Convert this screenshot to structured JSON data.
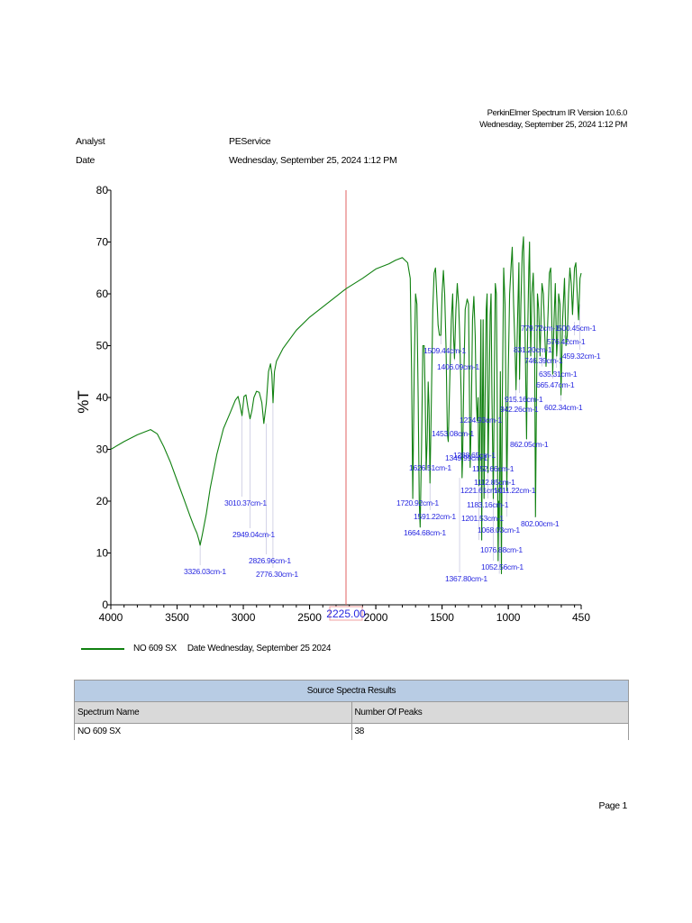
{
  "header": {
    "software": "PerkinElmer Spectrum IR Version 10.6.0",
    "software_date": "Wednesday, September 25, 2024 1:12 PM",
    "analyst_label": "Analyst",
    "analyst_value": "PEService",
    "date_label": "Date",
    "date_value": "Wednesday, September 25, 2024 1:12 PM"
  },
  "chart_data": {
    "type": "line",
    "xlabel": "cm-1",
    "ylabel": "%T",
    "xlim": [
      4000,
      450
    ],
    "ylim": [
      0,
      80
    ],
    "x_reversed": true,
    "grid": false,
    "xticks": [
      4000,
      3500,
      3000,
      2500,
      2000,
      1500,
      1000,
      450
    ],
    "yticks": [
      0,
      10,
      20,
      30,
      40,
      50,
      60,
      70,
      80
    ],
    "cursor": {
      "x": 2225.0,
      "label": "2225.00"
    },
    "colors": {
      "line": "#108010",
      "peaks": "#2828e0",
      "cursor": "#e06060",
      "axis": "#000000"
    },
    "series": [
      {
        "name": "NO 609 SX",
        "x": [
          4000,
          3900,
          3800,
          3700,
          3650,
          3600,
          3550,
          3500,
          3450,
          3400,
          3370,
          3350,
          3335,
          3326,
          3310,
          3280,
          3250,
          3200,
          3150,
          3100,
          3060,
          3040,
          3025,
          3010,
          2995,
          2980,
          2965,
          2949,
          2935,
          2920,
          2900,
          2880,
          2860,
          2845,
          2826,
          2810,
          2795,
          2785,
          2776,
          2765,
          2750,
          2700,
          2600,
          2500,
          2400,
          2300,
          2225,
          2100,
          2000,
          1900,
          1850,
          1800,
          1780,
          1760,
          1740,
          1730,
          1721,
          1710,
          1700,
          1690,
          1680,
          1672,
          1665,
          1655,
          1645,
          1635,
          1627,
          1620,
          1612,
          1605,
          1598,
          1591,
          1580,
          1570,
          1560,
          1550,
          1540,
          1530,
          1520,
          1509,
          1500,
          1490,
          1480,
          1470,
          1460,
          1453,
          1440,
          1430,
          1420,
          1414,
          1406,
          1395,
          1385,
          1375,
          1368,
          1355,
          1349,
          1345,
          1335,
          1325,
          1310,
          1300,
          1288,
          1280,
          1270,
          1260,
          1250,
          1242,
          1235,
          1228,
          1221,
          1213,
          1207,
          1201,
          1195,
          1190,
          1183,
          1175,
          1167,
          1160,
          1153,
          1145,
          1137,
          1130,
          1123,
          1113,
          1105,
          1098,
          1090,
          1084,
          1077,
          1072,
          1068,
          1060,
          1052,
          1045,
          1035,
          1025,
          1011,
          1000,
          990,
          980,
          970,
          960,
          950,
          942,
          930,
          920,
          915,
          905,
          895,
          885,
          875,
          862,
          855,
          845,
          840,
          831,
          822,
          812,
          802,
          795,
          787,
          780,
          770,
          760,
          753,
          746,
          735,
          725,
          715,
          700,
          690,
          680,
          672,
          665,
          655,
          645,
          635,
          628,
          620,
          610,
          602,
          590,
          576,
          565,
          555,
          545,
          535,
          525,
          515,
          500,
          490,
          480,
          470,
          459,
          450
        ],
        "y": [
          30.0,
          31.5,
          32.8,
          33.8,
          33.0,
          30.5,
          27.5,
          24.0,
          20.5,
          17.0,
          15.0,
          13.8,
          12.5,
          11.5,
          13.5,
          17.5,
          22.5,
          29.0,
          34.0,
          37.0,
          39.5,
          40.2,
          38.5,
          36.5,
          40.2,
          40.5,
          38.0,
          35.9,
          37.5,
          40.0,
          41.2,
          41.0,
          39.0,
          35.0,
          39.0,
          45.0,
          46.5,
          44.5,
          39.0,
          45.0,
          47.0,
          49.5,
          53.0,
          55.5,
          57.5,
          59.5,
          61.0,
          63.0,
          64.8,
          65.8,
          66.5,
          67.0,
          66.5,
          66.0,
          63.0,
          45.0,
          20.5,
          45.0,
          60.0,
          58.0,
          40.0,
          20.0,
          15.0,
          30.0,
          50.0,
          50.0,
          40.0,
          26.0,
          32.0,
          43.0,
          38.0,
          23.5,
          40.0,
          57.0,
          64.0,
          65.0,
          60.0,
          54.0,
          52.0,
          52.0,
          60.0,
          64.5,
          60.0,
          50.0,
          33.0,
          31.5,
          45.0,
          55.0,
          60.0,
          52.0,
          47.5,
          57.0,
          62.0,
          58.0,
          53.0,
          40.0,
          24.5,
          28.0,
          45.0,
          57.0,
          59.0,
          58.0,
          26.5,
          36.0,
          55.0,
          59.5,
          52.0,
          40.0,
          35.5,
          40.0,
          23.0,
          37.0,
          55.0,
          12.5,
          40.0,
          55.0,
          20.5,
          40.0,
          57.0,
          60.0,
          25.5,
          40.0,
          56.0,
          60.0,
          40.0,
          20.5,
          45.0,
          62.0,
          60.0,
          40.0,
          8.5,
          20.0,
          14.5,
          45.0,
          6.0,
          40.0,
          65.0,
          58.0,
          22.0,
          45.0,
          60.0,
          65.0,
          69.0,
          58.0,
          50.0,
          41.5,
          55.0,
          66.0,
          43.5,
          58.0,
          68.0,
          71.0,
          55.0,
          32.0,
          50.0,
          65.0,
          70.0,
          48.0,
          60.0,
          64.0,
          55.0,
          17.0,
          40.0,
          60.0,
          57.0,
          48.0,
          55.0,
          62.0,
          60.0,
          52.0,
          46.0,
          56.0,
          64.0,
          65.0,
          55.0,
          44.5,
          55.0,
          62.0,
          48.0,
          51.5,
          60.0,
          58.0,
          40.5,
          55.0,
          63.0,
          50.0,
          52.0,
          60.0,
          65.0,
          62.0,
          56.0,
          65.0,
          66.0,
          60.0,
          55.0,
          63.0,
          64.0
        ]
      }
    ],
    "peak_labels": [
      "3326.03cm-1",
      "3010.37cm-1",
      "2949.04cm-1",
      "2826.96cm-1",
      "2776.30cm-1",
      "1720.92cm-1",
      "1664.68cm-1",
      "1626.51cm-1",
      "1591.22cm-1",
      "1509.44cm-1",
      "1453.08cm-1",
      "1406.09cm-1",
      "1367.80cm-1",
      "1349.99cm-1",
      "1288.65cm-1",
      "1234.93cm-1",
      "1221.61cm-1",
      "1201.53cm-1",
      "1183.16cm-1",
      "1152.66cm-1",
      "1112.85cm-1",
      "1076.88cm-1",
      "1068.03cm-1",
      "1052.56cm-1",
      "1011.22cm-1",
      "942.26cm-1",
      "915.16cm-1",
      "862.05cm-1",
      "831.20cm-1",
      "802.00cm-1",
      "779.72cm-1",
      "746.39cm-1",
      "665.47cm-1",
      "635.31cm-1",
      "602.34cm-1",
      "576.42cm-1",
      "500.45cm-1",
      "459.32cm-1"
    ]
  },
  "legend": {
    "name": "NO 609 SX",
    "date_text": "Date Wednesday, September 25 2024"
  },
  "results_table": {
    "title": "Source Spectra Results",
    "columns": [
      "Spectrum Name",
      "Number Of Peaks"
    ],
    "rows": [
      [
        "NO 609 SX",
        "38"
      ]
    ]
  },
  "footer": {
    "page": "Page 1"
  }
}
